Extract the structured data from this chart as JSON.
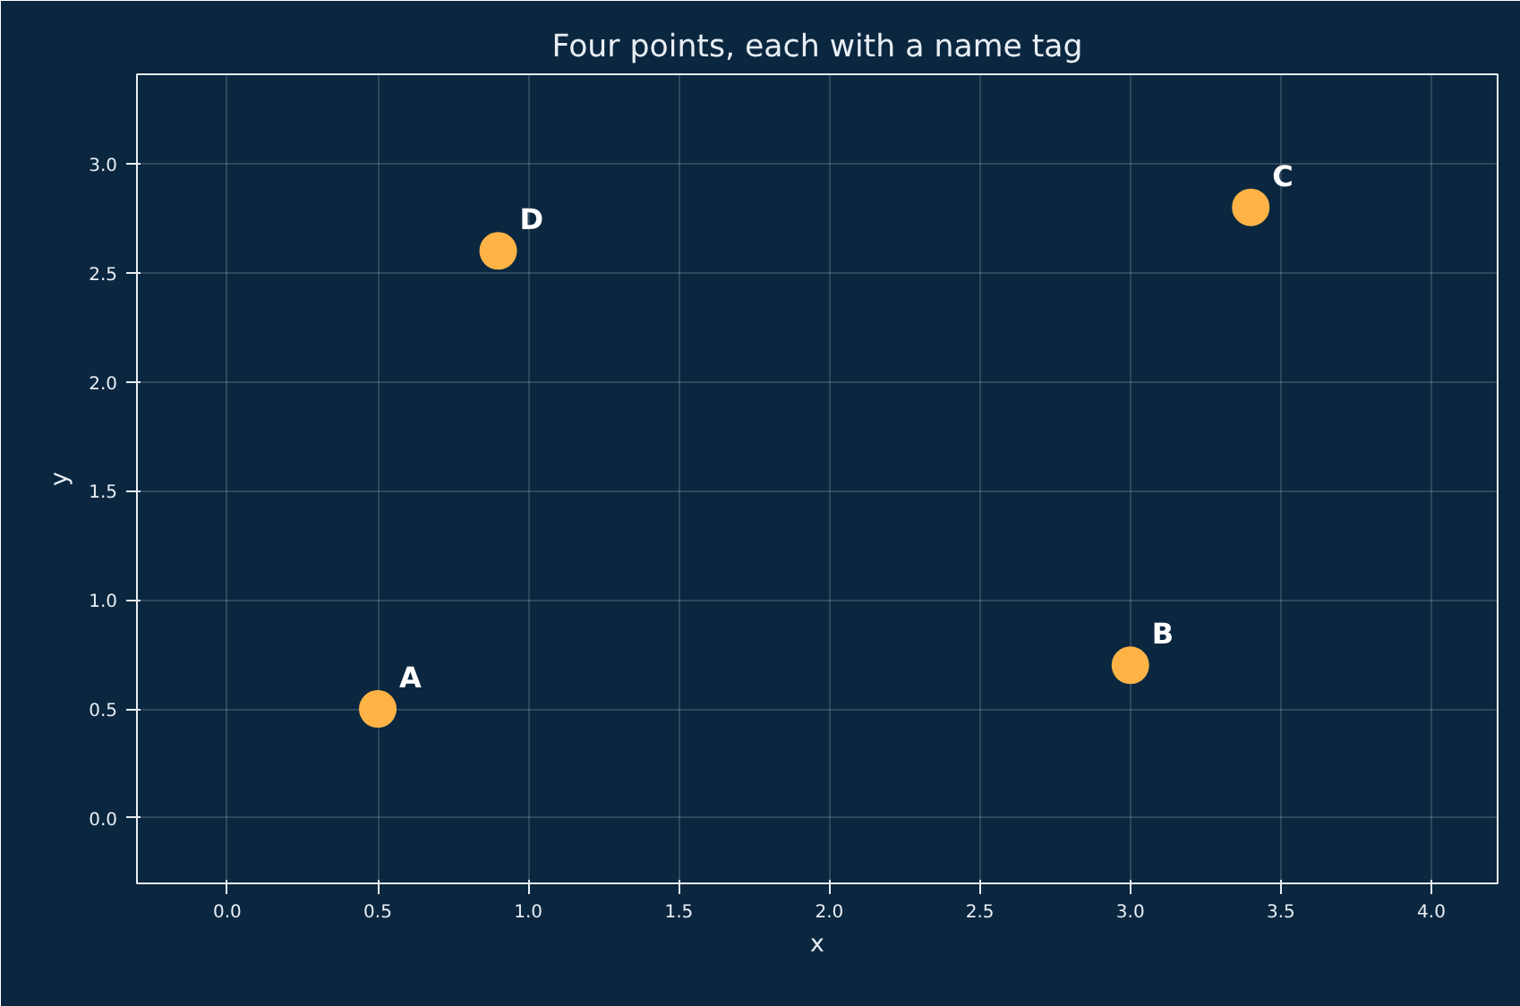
{
  "chart_data": {
    "type": "scatter",
    "title": "Four points, each with a name tag",
    "xlabel": "x",
    "ylabel": "y",
    "x": [
      0.5,
      3.0,
      3.4,
      0.9
    ],
    "series": [
      {
        "color": "#ffb347",
        "values": [
          0.5,
          0.7,
          2.8,
          2.6
        ]
      }
    ],
    "annotations": [
      {
        "text": "A",
        "x": 0.5,
        "y": 0.5
      },
      {
        "text": "B",
        "x": 3.0,
        "y": 0.7
      },
      {
        "text": "C",
        "x": 3.4,
        "y": 2.8
      },
      {
        "text": "D",
        "x": 0.9,
        "y": 2.6
      }
    ],
    "xlim": [
      -0.3,
      4.22
    ],
    "ylim": [
      -0.3,
      3.41
    ],
    "xticks": [
      {
        "value": 0,
        "label": "0.0"
      },
      0.5,
      {
        "value": 1,
        "label": "1.0"
      },
      1.5,
      {
        "value": 2,
        "label": "2.0"
      },
      2.5,
      {
        "value": 3,
        "label": "3.0"
      },
      3.5,
      {
        "value": 4,
        "label": "4.0"
      }
    ],
    "yticks": [
      {
        "value": 0,
        "label": "0.0"
      },
      0.5,
      {
        "value": 1,
        "label": "1.0"
      },
      1.5,
      {
        "value": 2,
        "label": "2.0"
      },
      2.5,
      {
        "value": 3,
        "label": "3.0"
      }
    ],
    "grid": true,
    "marker": "circle"
  }
}
